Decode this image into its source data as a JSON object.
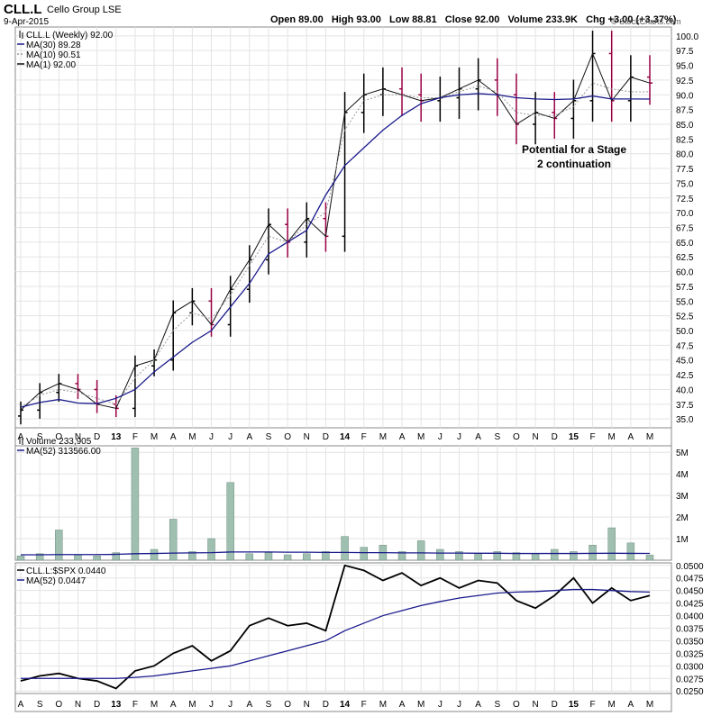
{
  "header": {
    "symbol": "CLL.L",
    "company": "Cello Group LSE",
    "date": "9-Apr-2015",
    "quote": "Open 89.00   High 93.00   Low 88.81   Close 92.00   Volume 233.9K   Chg +3.00 (+3.37%)",
    "watermark": "© StockCharts.com"
  },
  "annotation": "Potential for a Stage 2 continuation",
  "price_panel": {
    "legend": [
      "CLL.L (Weekly) 92.00",
      "MA(30) 89.28",
      "MA(10) 90.51",
      "MA(1) 92.00"
    ],
    "ticks": [
      "100.0",
      "97.5",
      "95.0",
      "92.5",
      "90.0",
      "87.5",
      "85.0",
      "82.5",
      "80.0",
      "77.5",
      "75.0",
      "72.5",
      "70.0",
      "67.5",
      "65.0",
      "62.5",
      "60.0",
      "57.5",
      "55.0",
      "52.5",
      "50.0",
      "47.5",
      "45.0",
      "42.5",
      "40.0",
      "37.5",
      "35.0"
    ]
  },
  "volume_panel": {
    "legend": [
      "Volume 233,905",
      "MA(52) 313566.00"
    ],
    "ticks": [
      "5M",
      "4M",
      "3M",
      "2M",
      "1M"
    ]
  },
  "ratio_panel": {
    "legend": [
      "CLL.L:$SPX 0.0440",
      "MA(52) 0.0447"
    ],
    "ticks": [
      "0.0500",
      "0.0475",
      "0.0450",
      "0.0425",
      "0.0400",
      "0.0375",
      "0.0350",
      "0.0325",
      "0.0300",
      "0.0275",
      "0.0250"
    ]
  },
  "xaxis": [
    "A",
    "S",
    "O",
    "N",
    "D",
    "13",
    "F",
    "M",
    "A",
    "M",
    "J",
    "J",
    "A",
    "S",
    "O",
    "N",
    "D",
    "14",
    "F",
    "M",
    "A",
    "M",
    "J",
    "J",
    "A",
    "S",
    "O",
    "N",
    "D",
    "15",
    "F",
    "M",
    "A",
    "M"
  ],
  "colors": {
    "up": "#000000",
    "down": "#990044",
    "ma30": "#1a1a8c",
    "ma10": "#999999",
    "volume": "#9fbfb0",
    "grid": "#e3e3e3"
  },
  "chart_data": [
    {
      "type": "line",
      "title": "CLL.L (Weekly) 92.00",
      "ylim": [
        33.5,
        101.5
      ],
      "x": [
        "A",
        "S",
        "O",
        "N",
        "D",
        "13",
        "F",
        "M",
        "A",
        "M",
        "J",
        "J",
        "A",
        "S",
        "O",
        "N",
        "D",
        "14",
        "F",
        "M",
        "A",
        "M",
        "J",
        "J",
        "A",
        "S",
        "O",
        "N",
        "D",
        "15",
        "F",
        "M",
        "A",
        "M"
      ],
      "series": [
        {
          "name": "CLL.L (Weekly) 92.00",
          "values": [
            36.5,
            39.5,
            41,
            40,
            37.5,
            36.8,
            44,
            45,
            53,
            55,
            51,
            57,
            62,
            68,
            65,
            69,
            66,
            87,
            90,
            91,
            90,
            89,
            89.5,
            91,
            92.5,
            90,
            85,
            87,
            86,
            89,
            97,
            89,
            93,
            92
          ]
        },
        {
          "name": "MA(30) 89.28",
          "values": [
            37,
            37.8,
            38.3,
            37.7,
            37.6,
            38.5,
            40,
            43,
            45.5,
            48,
            50,
            54,
            58,
            63,
            65,
            67,
            73,
            78,
            81,
            84,
            86.5,
            88.5,
            89.5,
            90,
            90.2,
            90,
            89.5,
            89.3,
            89.2,
            89.3,
            89.8,
            89.3,
            89.3,
            89.28
          ]
        },
        {
          "name": "MA(10) 90.51",
          "values": [
            37,
            39,
            40,
            39.5,
            38.5,
            37.5,
            42,
            45,
            50,
            53,
            52,
            56,
            61,
            66,
            65,
            68,
            70,
            84,
            89,
            90,
            90,
            89.5,
            89.5,
            90.5,
            91.5,
            90.5,
            87,
            86.5,
            86.5,
            88,
            92,
            91,
            90.5,
            90.51
          ]
        }
      ]
    },
    {
      "type": "bar",
      "title": "Volume 233,905",
      "ylim": [
        0,
        5300000
      ],
      "x": [
        "A",
        "S",
        "O",
        "N",
        "D",
        "13",
        "F",
        "M",
        "A",
        "M",
        "J",
        "J",
        "A",
        "S",
        "O",
        "N",
        "D",
        "14",
        "F",
        "M",
        "A",
        "M",
        "J",
        "J",
        "A",
        "S",
        "O",
        "N",
        "D",
        "15",
        "F",
        "M",
        "A",
        "M"
      ],
      "series": [
        {
          "name": "Volume 233,905",
          "values": [
            200000,
            300000,
            1400000,
            250000,
            200000,
            350000,
            5200000,
            500000,
            1900000,
            400000,
            1000000,
            3600000,
            300000,
            350000,
            250000,
            300000,
            400000,
            1100000,
            600000,
            700000,
            400000,
            900000,
            500000,
            400000,
            300000,
            400000,
            350000,
            300000,
            500000,
            400000,
            700000,
            1500000,
            800000,
            233905
          ]
        },
        {
          "name": "MA(52) 313566.00",
          "values": [
            250000,
            250000,
            260000,
            260000,
            260000,
            270000,
            300000,
            310000,
            330000,
            340000,
            350000,
            380000,
            380000,
            380000,
            370000,
            370000,
            360000,
            360000,
            350000,
            350000,
            340000,
            340000,
            330000,
            330000,
            320000,
            320000,
            310000,
            310000,
            310000,
            310000,
            315000,
            320000,
            315000,
            313566
          ]
        }
      ]
    },
    {
      "type": "line",
      "title": "CLL.L:$SPX 0.0440",
      "ylim": [
        0.0245,
        0.0505
      ],
      "x": [
        "A",
        "S",
        "O",
        "N",
        "D",
        "13",
        "F",
        "M",
        "A",
        "M",
        "J",
        "J",
        "A",
        "S",
        "O",
        "N",
        "D",
        "14",
        "F",
        "M",
        "A",
        "M",
        "J",
        "J",
        "A",
        "S",
        "O",
        "N",
        "D",
        "15",
        "F",
        "M",
        "A",
        "M"
      ],
      "series": [
        {
          "name": "CLL.L:$SPX 0.0440",
          "values": [
            0.027,
            0.028,
            0.0285,
            0.0275,
            0.027,
            0.0255,
            0.029,
            0.03,
            0.0325,
            0.034,
            0.031,
            0.033,
            0.038,
            0.0395,
            0.038,
            0.0385,
            0.037,
            0.05,
            0.049,
            0.047,
            0.0485,
            0.046,
            0.0475,
            0.0455,
            0.047,
            0.0465,
            0.043,
            0.0415,
            0.044,
            0.0475,
            0.0425,
            0.0455,
            0.043,
            0.044
          ]
        },
        {
          "name": "MA(52) 0.0447",
          "values": [
            0.0275,
            0.0275,
            0.0275,
            0.0275,
            0.0275,
            0.0275,
            0.0277,
            0.028,
            0.0285,
            0.029,
            0.0295,
            0.03,
            0.031,
            0.032,
            0.033,
            0.034,
            0.035,
            0.037,
            0.0385,
            0.04,
            0.041,
            0.042,
            0.0428,
            0.0435,
            0.044,
            0.0445,
            0.0447,
            0.0448,
            0.045,
            0.0452,
            0.0452,
            0.045,
            0.0448,
            0.0447
          ]
        }
      ]
    }
  ]
}
